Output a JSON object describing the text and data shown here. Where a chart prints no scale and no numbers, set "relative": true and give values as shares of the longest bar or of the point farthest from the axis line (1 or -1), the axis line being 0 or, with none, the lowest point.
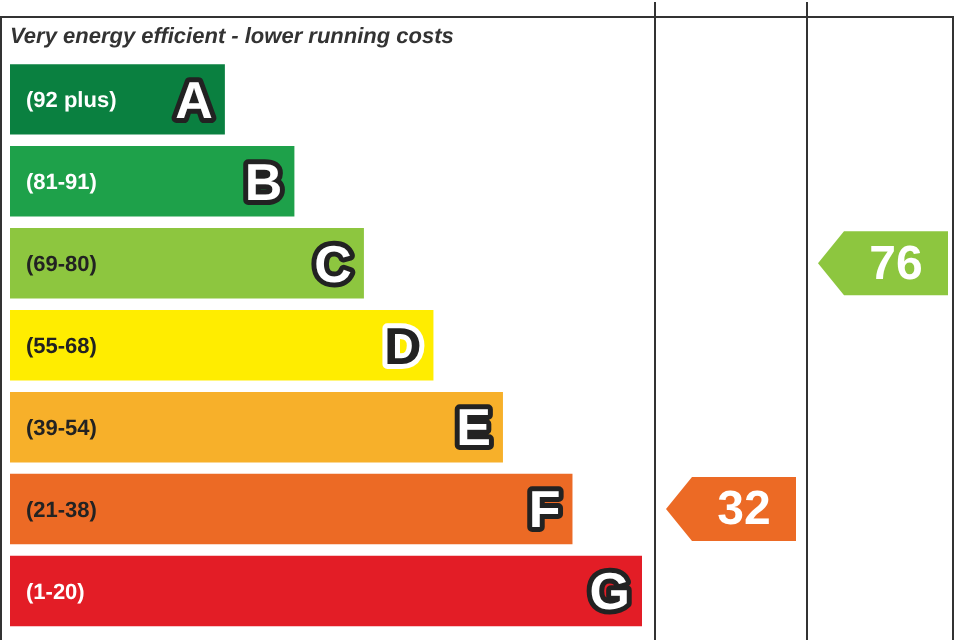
{
  "chart_data": {
    "type": "bar",
    "orientation": "horizontal",
    "relative": true,
    "title": "Very energy efficient - lower running costs",
    "categories": [
      "(92 plus) A",
      "(81-91) B",
      "(69-80) C",
      "(55-68) D",
      "(39-54) E",
      "(21-38) F",
      "(1-20) G"
    ],
    "values": [
      0.34,
      0.45,
      0.56,
      0.67,
      0.78,
      0.89,
      1
    ],
    "colors": [
      "#0a8040",
      "#1ea14a",
      "#8dc63f",
      "#ffed00",
      "#f7b02a",
      "#ec6a25",
      "#e31d26"
    ],
    "annotations": [
      "32",
      "76"
    ],
    "legend": false
  }
}
